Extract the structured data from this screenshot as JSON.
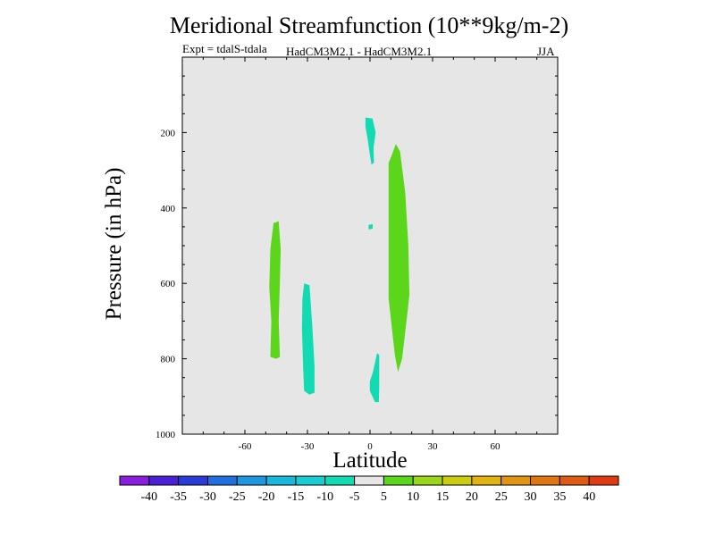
{
  "chart_data": {
    "type": "contour",
    "title": "Meridional Streamfunction (10**9kg/m-2)",
    "subtitle_left": "Expt = tdalS-tdala",
    "subtitle_center": "HadCM3M2.1 - HadCM3M2.1",
    "subtitle_right": "JJA",
    "xlabel": "Latitude",
    "ylabel": "Pressure (in hPa)",
    "xlim": [
      -90,
      90
    ],
    "ylim": [
      0,
      1000
    ],
    "y_inverted": true,
    "xticks": [
      "-60",
      "-30",
      "0",
      "30",
      "60"
    ],
    "yticks": [
      "200",
      "400",
      "600",
      "800",
      "1000"
    ],
    "background_color": "#e6e6e6",
    "colorbar": {
      "labels": [
        "-40",
        "-35",
        "-30",
        "-25",
        "-20",
        "-15",
        "-10",
        "-5",
        "5",
        "10",
        "15",
        "20",
        "25",
        "30",
        "35",
        "40"
      ],
      "colors": [
        "#8a1ee0",
        "#4b1fd8",
        "#2b3bd9",
        "#1f6fe0",
        "#1d98e0",
        "#1ab7dd",
        "#17cdd2",
        "#12dbb3",
        "#e6e6e6",
        "#5cd61a",
        "#9ad61a",
        "#cccc12",
        "#e0b212",
        "#e09612",
        "#e07612",
        "#e05a12",
        "#e03a12"
      ]
    },
    "regions": [
      {
        "name": "positive-region-1",
        "level": "5 to 10",
        "color": "#5cd61a",
        "points": [
          [
            -46.3,
            440
          ],
          [
            -43.8,
            435
          ],
          [
            -42.8,
            510
          ],
          [
            -43.3,
            610
          ],
          [
            -43.8,
            700
          ],
          [
            -43.2,
            795
          ],
          [
            -45.0,
            800
          ],
          [
            -47.8,
            795
          ],
          [
            -47.3,
            700
          ],
          [
            -48.3,
            610
          ],
          [
            -47.8,
            510
          ]
        ]
      },
      {
        "name": "negative-region-1",
        "level": "-5 to -10",
        "color": "#12dbb3",
        "points": [
          [
            -31.6,
            600
          ],
          [
            -29.0,
            605
          ],
          [
            -27.6,
            720
          ],
          [
            -26.6,
            820
          ],
          [
            -26.6,
            890
          ],
          [
            -29.1,
            895
          ],
          [
            -31.6,
            885
          ],
          [
            -32.1,
            820
          ],
          [
            -32.6,
            720
          ],
          [
            -32.4,
            640
          ]
        ]
      },
      {
        "name": "negative-region-2",
        "level": "-5 to -10",
        "color": "#12dbb3",
        "points": [
          [
            -2.2,
            160
          ],
          [
            1.2,
            163
          ],
          [
            2.7,
            200
          ],
          [
            1.7,
            240
          ],
          [
            1.9,
            280
          ],
          [
            0.7,
            285
          ],
          [
            -0.3,
            250
          ],
          [
            -1.2,
            215
          ],
          [
            -2.2,
            185
          ]
        ]
      },
      {
        "name": "negative-region-3",
        "level": "-5 to -10",
        "color": "#12dbb3",
        "points": [
          [
            -0.7,
            445
          ],
          [
            1.3,
            443
          ],
          [
            1.3,
            455
          ],
          [
            -0.7,
            457
          ]
        ]
      },
      {
        "name": "positive-region-2",
        "level": "5 to 10",
        "color": "#5cd61a",
        "points": [
          [
            12.4,
            230
          ],
          [
            14.4,
            250
          ],
          [
            16.9,
            360
          ],
          [
            18.4,
            500
          ],
          [
            18.9,
            630
          ],
          [
            17.9,
            680
          ],
          [
            15.4,
            800
          ],
          [
            13.4,
            835
          ],
          [
            11.9,
            790
          ],
          [
            8.9,
            640
          ],
          [
            8.9,
            280
          ],
          [
            10.4,
            260
          ]
        ]
      },
      {
        "name": "negative-region-4",
        "level": "-5 to -10",
        "color": "#12dbb3",
        "points": [
          [
            3.4,
            785
          ],
          [
            4.4,
            790
          ],
          [
            4.4,
            880
          ],
          [
            4.2,
            915
          ],
          [
            2.4,
            915
          ],
          [
            -0.1,
            885
          ],
          [
            -0.1,
            860
          ],
          [
            1.4,
            835
          ],
          [
            2.4,
            810
          ]
        ]
      }
    ]
  }
}
